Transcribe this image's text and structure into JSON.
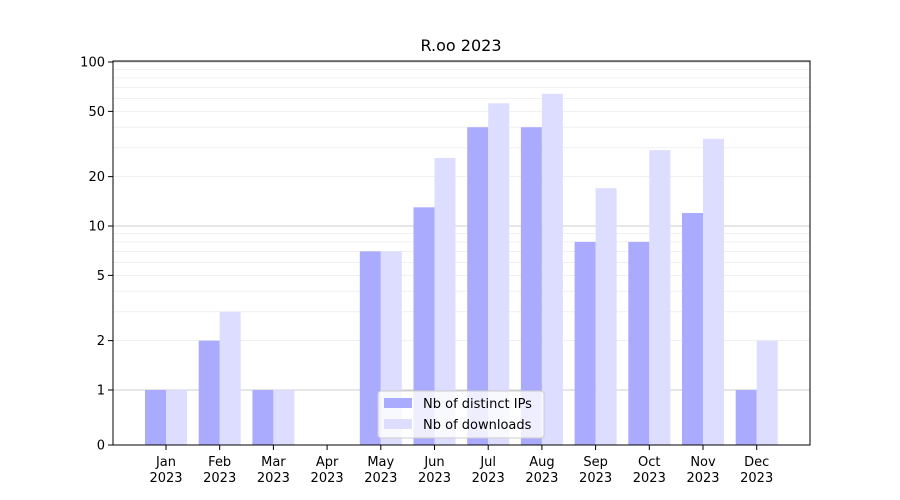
{
  "chart_data": {
    "type": "bar",
    "title": "R.oo 2023",
    "xlabel": "",
    "ylabel": "",
    "yscale": "symlog",
    "ylim": [
      0,
      130
    ],
    "y_ticks": [
      0,
      1,
      2,
      5,
      10,
      20,
      50,
      100
    ],
    "grid": "horizontal",
    "legend_position": "bottom-center",
    "categories": [
      [
        "Jan",
        "2023"
      ],
      [
        "Feb",
        "2023"
      ],
      [
        "Mar",
        "2023"
      ],
      [
        "Apr",
        "2023"
      ],
      [
        "May",
        "2023"
      ],
      [
        "Jun",
        "2023"
      ],
      [
        "Jul",
        "2023"
      ],
      [
        "Aug",
        "2023"
      ],
      [
        "Sep",
        "2023"
      ],
      [
        "Oct",
        "2023"
      ],
      [
        "Nov",
        "2023"
      ],
      [
        "Dec",
        "2023"
      ]
    ],
    "series": [
      {
        "name": "Nb of distinct IPs",
        "color": "#aaaaff",
        "values": [
          1,
          2,
          1,
          0,
          7,
          13,
          40,
          40,
          8,
          8,
          12,
          1
        ]
      },
      {
        "name": "Nb of downloads",
        "color": "#ddddff",
        "values": [
          1,
          3,
          1,
          0,
          7,
          26,
          56,
          64,
          17,
          29,
          34,
          2
        ]
      }
    ]
  }
}
